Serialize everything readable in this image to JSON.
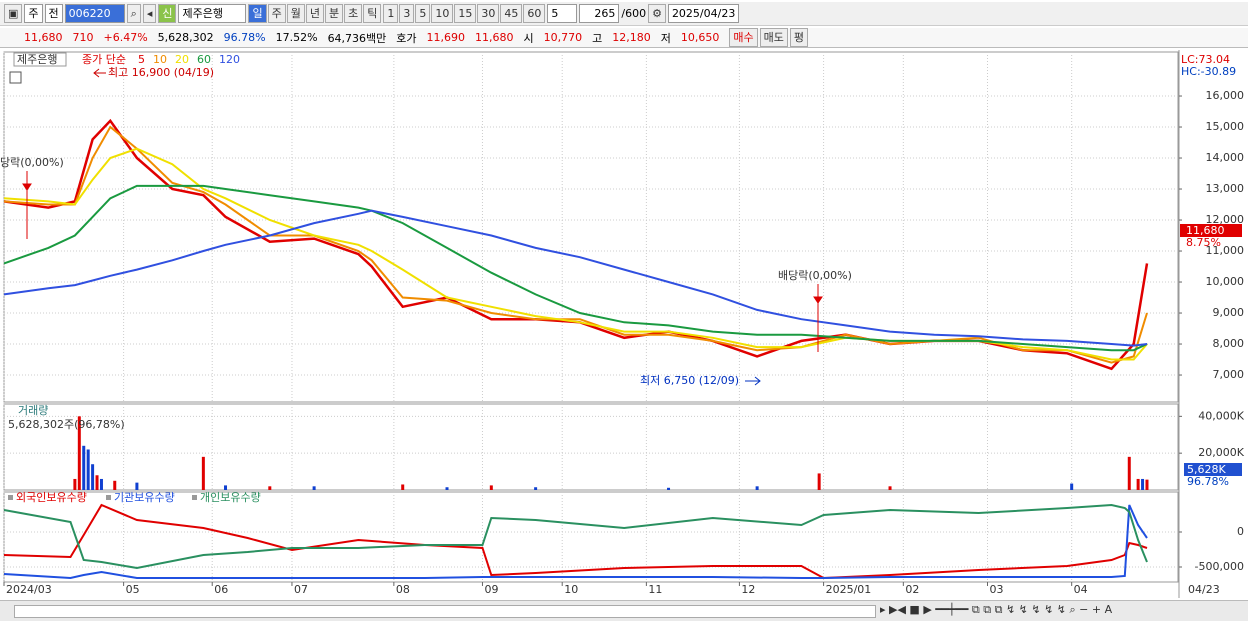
{
  "toolbar": {
    "market": "주",
    "prev": "전",
    "code": "006220",
    "badge": "신",
    "name": "제주은행",
    "periods": [
      "일",
      "주",
      "월",
      "년",
      "분",
      "초",
      "틱"
    ],
    "intervals": [
      "1",
      "3",
      "5",
      "10",
      "15",
      "30",
      "45",
      "60"
    ],
    "count_select": "5",
    "shown": "265",
    "total": "/600",
    "date": "2025/04/23"
  },
  "quote": {
    "price": "11,680",
    "change": "710",
    "rate": "+6.47%",
    "volume": "5,628,302",
    "vol_ratio": "96.78%",
    "turnover": "17.52%",
    "amount": "64,736백만",
    "bid_label": "호가",
    "ask": "11,690",
    "bid": "11,680",
    "open_label": "시",
    "open": "10,770",
    "high_label": "고",
    "high": "12,180",
    "low_label": "저",
    "low": "10,650",
    "buttons": [
      "매수",
      "매도",
      "평"
    ]
  },
  "chart_data": [
    {
      "type": "line",
      "legend_title": "제주은행",
      "ma_label": "종가 단순",
      "lc_label": "LC:73.04",
      "hc_label": "HC:-30.89",
      "last_label": "11,680",
      "last_change": "8.75%",
      "annotations": [
        "최고 16,900 (04/19)",
        "최저 6,750 (12/09)",
        "배당락(0,00%)",
        "당락(0,00%)"
      ],
      "xlim": [
        0,
        265
      ],
      "ylim": [
        6130,
        17420
      ],
      "xticks": [
        {
          "value": 0,
          "label": "2024/03"
        },
        {
          "value": 27,
          "label": "05"
        },
        {
          "value": 47,
          "label": "06"
        },
        {
          "value": 65,
          "label": "07"
        },
        {
          "value": 88,
          "label": "08"
        },
        {
          "value": 108,
          "label": "09"
        },
        {
          "value": 126,
          "label": "10"
        },
        {
          "value": 145,
          "label": "11"
        },
        {
          "value": 166,
          "label": "12"
        },
        {
          "value": 185,
          "label": "2025/01"
        },
        {
          "value": 203,
          "label": "02"
        },
        {
          "value": 222,
          "label": "03"
        },
        {
          "value": 241,
          "label": "04"
        }
      ],
      "current_date_label": "04/23",
      "yticks": [
        {
          "value": 7000,
          "label": "7,000"
        },
        {
          "value": 8000,
          "label": "8,000"
        },
        {
          "value": 9000,
          "label": "9,000"
        },
        {
          "value": 10000,
          "label": "10,000"
        },
        {
          "value": 11000,
          "label": "11,000"
        },
        {
          "value": 12000,
          "label": "12,000"
        },
        {
          "value": 13000,
          "label": "13,000"
        },
        {
          "value": 14000,
          "label": "14,000"
        },
        {
          "value": 15000,
          "label": "15,000"
        },
        {
          "value": 16000,
          "label": "16,000"
        }
      ],
      "grid": true,
      "x": [
        0,
        10,
        16,
        20,
        24,
        30,
        38,
        45,
        50,
        60,
        70,
        80,
        83,
        90,
        100,
        110,
        120,
        130,
        140,
        150,
        160,
        170,
        180,
        190,
        200,
        210,
        220,
        230,
        240,
        250,
        255,
        258
      ],
      "series": [
        {
          "name": "5",
          "color": "#e00000",
          "values": [
            12600,
            12400,
            12600,
            14600,
            15200,
            14000,
            13000,
            12800,
            12100,
            11300,
            11400,
            10900,
            10500,
            9200,
            9500,
            8800,
            8800,
            8700,
            8200,
            8400,
            8100,
            7600,
            8100,
            8300,
            8000,
            8100,
            8100,
            7800,
            7700,
            7200,
            8000,
            10600
          ]
        },
        {
          "name": "10",
          "color": "#f08c00",
          "values": [
            12600,
            12500,
            12500,
            14000,
            15000,
            14300,
            13200,
            12900,
            12500,
            11500,
            11500,
            11000,
            10700,
            9500,
            9400,
            9000,
            8800,
            8800,
            8300,
            8300,
            8100,
            7800,
            7900,
            8300,
            8000,
            8100,
            8200,
            7800,
            7800,
            7400,
            7600,
            9000
          ]
        },
        {
          "name": "20",
          "color": "#f0e000",
          "values": [
            12700,
            12600,
            12500,
            13300,
            14000,
            14300,
            13800,
            13000,
            12700,
            12000,
            11500,
            11200,
            11000,
            10400,
            9500,
            9200,
            8900,
            8700,
            8400,
            8400,
            8200,
            7900,
            7900,
            8200,
            8100,
            8100,
            8100,
            7900,
            7800,
            7500,
            7500,
            8000
          ]
        },
        {
          "name": "60",
          "color": "#1a9a40",
          "values": [
            10600,
            11100,
            11500,
            12100,
            12700,
            13100,
            13100,
            13100,
            13000,
            12800,
            12600,
            12400,
            12300,
            11900,
            11100,
            10300,
            9600,
            9000,
            8700,
            8600,
            8400,
            8300,
            8300,
            8200,
            8100,
            8100,
            8100,
            8000,
            7900,
            7800,
            7800,
            8000
          ]
        },
        {
          "name": "120",
          "color": "#3050e0",
          "values": [
            9600,
            9800,
            9900,
            10050,
            10200,
            10400,
            10700,
            11000,
            11200,
            11500,
            11900,
            12200,
            12300,
            12100,
            11800,
            11500,
            11100,
            10800,
            10400,
            10000,
            9600,
            9100,
            8800,
            8600,
            8400,
            8300,
            8250,
            8150,
            8100,
            8000,
            7950,
            8000
          ]
        }
      ]
    },
    {
      "type": "bar",
      "title": "거래량",
      "subtitle": "5,628,302주(96,78%)",
      "last_label": "5,628K",
      "last_ratio": "96.78%",
      "xlim": [
        0,
        265
      ],
      "ylim": [
        0,
        46700
      ],
      "yticks": [
        {
          "value": 20000,
          "label": "20,000K"
        },
        {
          "value": 40000,
          "label": "40,000K"
        }
      ],
      "series": [
        {
          "color": "#e00000",
          "x": [
            16,
            17,
            21,
            25,
            45,
            60,
            90,
            110,
            184,
            200,
            254,
            256,
            258
          ],
          "values": [
            6000,
            40000,
            8000,
            5000,
            18000,
            2000,
            3000,
            2500,
            9000,
            2000,
            18000,
            6000,
            5628
          ]
        },
        {
          "color": "#1040d0",
          "x": [
            18,
            19,
            20,
            22,
            30,
            50,
            70,
            100,
            120,
            150,
            170,
            241,
            257
          ],
          "values": [
            24000,
            22000,
            14000,
            6000,
            4000,
            2500,
            2000,
            1500,
            1500,
            1200,
            2000,
            3500,
            6000
          ]
        }
      ]
    },
    {
      "type": "line",
      "xlim": [
        0,
        265
      ],
      "ylim": [
        -714000,
        571000
      ],
      "yticks": [
        {
          "value": -500000,
          "label": "-500,000"
        },
        0
      ],
      "x": [
        0,
        15,
        18,
        22,
        30,
        45,
        55,
        65,
        80,
        95,
        108,
        110,
        120,
        140,
        160,
        180,
        185,
        200,
        220,
        240,
        250,
        253,
        254,
        256,
        258
      ],
      "series": [
        {
          "name": "외국인보유수량",
          "color": "#e00000",
          "values": [
            -329000,
            -357000,
            -43000,
            386000,
            171000,
            57000,
            -86000,
            -257000,
            -114000,
            -186000,
            -229000,
            -614000,
            -586000,
            -514000,
            -486000,
            -486000,
            -657000,
            -614000,
            -543000,
            -486000,
            -400000,
            -329000,
            -157000,
            -186000,
            -229000
          ]
        },
        {
          "name": "기관보유수량",
          "color": "#2050e0",
          "values": [
            -600000,
            -657000,
            -614000,
            -571000,
            -657000,
            -657000,
            -657000,
            -657000,
            -657000,
            -657000,
            -643000,
            -643000,
            -643000,
            -643000,
            -643000,
            -657000,
            -657000,
            -643000,
            -643000,
            -643000,
            -643000,
            -629000,
            386000,
            100000,
            -86000
          ]
        },
        {
          "name": "개인보유수량",
          "color": "#2a9060",
          "values": [
            314000,
            143000,
            -400000,
            -429000,
            -514000,
            -329000,
            -286000,
            -229000,
            -229000,
            -186000,
            -186000,
            200000,
            171000,
            57000,
            200000,
            100000,
            243000,
            314000,
            271000,
            343000,
            386000,
            343000,
            286000,
            -114000,
            -429000
          ]
        }
      ]
    }
  ]
}
